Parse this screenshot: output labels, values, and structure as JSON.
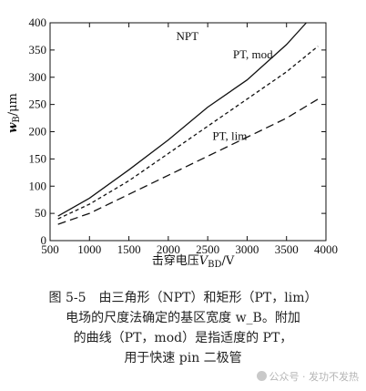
{
  "chart_data": {
    "type": "line",
    "xlabel": "击穿电压V_BD/V",
    "xlabel_parts": {
      "prefix": "击穿电压",
      "var": "V",
      "sub": "BD",
      "unit": "/V"
    },
    "ylabel": "w_B/μm",
    "ylabel_parts": {
      "var": "w",
      "sub": "B",
      "unit": "/μm"
    },
    "xlim": [
      500,
      4000
    ],
    "ylim": [
      0,
      400
    ],
    "x_ticks": [
      500,
      1000,
      1500,
      2000,
      2500,
      3000,
      3500,
      4000
    ],
    "y_ticks": [
      0,
      50,
      100,
      150,
      200,
      250,
      300,
      350,
      400
    ],
    "grid": false,
    "series": [
      {
        "name": "NPT",
        "style": "solid",
        "x": [
          600,
          1000,
          1500,
          2000,
          2500,
          3000,
          3500,
          3750
        ],
        "y": [
          45,
          78,
          130,
          185,
          245,
          295,
          360,
          400
        ]
      },
      {
        "name": "PT, mod",
        "style": "dashed",
        "x": [
          600,
          1000,
          1500,
          2000,
          2500,
          3000,
          3500,
          3900
        ],
        "y": [
          40,
          67,
          110,
          160,
          210,
          260,
          310,
          357
        ]
      },
      {
        "name": "PT, lim",
        "style": "dashed",
        "x": [
          600,
          1000,
          1500,
          2000,
          2500,
          3000,
          3500,
          3900
        ],
        "y": [
          30,
          50,
          85,
          120,
          155,
          190,
          225,
          260
        ]
      }
    ]
  },
  "caption": {
    "lines": [
      "图 5-5　由三角形（NPT）和矩形（PT，lim）",
      "电场的尺度法确定的基区宽度 w_B。附加",
      "的曲线（PT，mod）是指适度的 PT，",
      "用于快速 pin 二极管"
    ]
  },
  "watermark": {
    "text": "公众号 · 发功不发热"
  }
}
